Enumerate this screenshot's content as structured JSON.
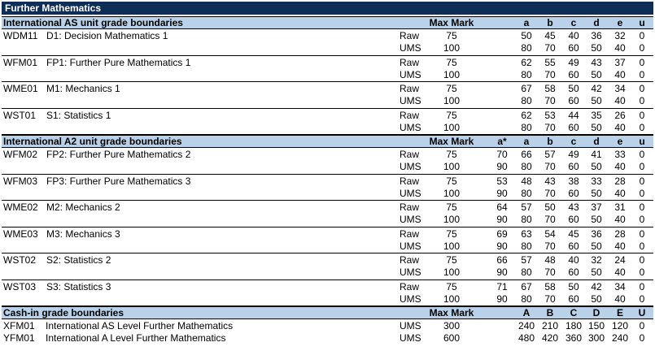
{
  "title": "Further Mathematics",
  "sections": [
    {
      "heading": "International AS unit grade boundaries",
      "columns": [
        "Max Mark",
        "a",
        "b",
        "c",
        "d",
        "e",
        "u"
      ],
      "has_astar": false,
      "units": [
        {
          "code": "WDM11",
          "name": "D1: Decision Mathematics 1",
          "raw": {
            "type": "Raw",
            "max": "75",
            "grades": [
              "50",
              "45",
              "40",
              "36",
              "32",
              "0"
            ]
          },
          "ums": {
            "type": "UMS",
            "max": "100",
            "grades": [
              "80",
              "70",
              "60",
              "50",
              "40",
              "0"
            ]
          }
        },
        {
          "code": "WFM01",
          "name": "FP1: Further Pure Mathematics 1",
          "raw": {
            "type": "Raw",
            "max": "75",
            "grades": [
              "62",
              "55",
              "49",
              "43",
              "37",
              "0"
            ]
          },
          "ums": {
            "type": "UMS",
            "max": "100",
            "grades": [
              "80",
              "70",
              "60",
              "50",
              "40",
              "0"
            ]
          }
        },
        {
          "code": "WME01",
          "name": "M1: Mechanics 1",
          "raw": {
            "type": "Raw",
            "max": "75",
            "grades": [
              "67",
              "58",
              "50",
              "42",
              "34",
              "0"
            ]
          },
          "ums": {
            "type": "UMS",
            "max": "100",
            "grades": [
              "80",
              "70",
              "60",
              "50",
              "40",
              "0"
            ]
          }
        },
        {
          "code": "WST01",
          "name": "S1: Statistics 1",
          "raw": {
            "type": "Raw",
            "max": "75",
            "grades": [
              "62",
              "53",
              "44",
              "35",
              "26",
              "0"
            ]
          },
          "ums": {
            "type": "UMS",
            "max": "100",
            "grades": [
              "80",
              "70",
              "60",
              "50",
              "40",
              "0"
            ]
          }
        }
      ]
    },
    {
      "heading": "International A2 unit grade boundaries",
      "columns": [
        "Max Mark",
        "a*",
        "a",
        "b",
        "c",
        "d",
        "e",
        "u"
      ],
      "has_astar": true,
      "units": [
        {
          "code": "WFM02",
          "name": "FP2: Further Pure Mathematics 2",
          "raw": {
            "type": "Raw",
            "max": "75",
            "grades": [
              "70",
              "66",
              "57",
              "49",
              "41",
              "33",
              "0"
            ]
          },
          "ums": {
            "type": "UMS",
            "max": "100",
            "grades": [
              "90",
              "80",
              "70",
              "60",
              "50",
              "40",
              "0"
            ]
          }
        },
        {
          "code": "WFM03",
          "name": "FP3: Further Pure Mathematics 3",
          "raw": {
            "type": "Raw",
            "max": "75",
            "grades": [
              "53",
              "48",
              "43",
              "38",
              "33",
              "28",
              "0"
            ]
          },
          "ums": {
            "type": "UMS",
            "max": "100",
            "grades": [
              "90",
              "80",
              "70",
              "60",
              "50",
              "40",
              "0"
            ]
          }
        },
        {
          "code": "WME02",
          "name": "M2: Mechanics 2",
          "raw": {
            "type": "Raw",
            "max": "75",
            "grades": [
              "64",
              "57",
              "50",
              "43",
              "37",
              "31",
              "0"
            ]
          },
          "ums": {
            "type": "UMS",
            "max": "100",
            "grades": [
              "90",
              "80",
              "70",
              "60",
              "50",
              "40",
              "0"
            ]
          }
        },
        {
          "code": "WME03",
          "name": "M3: Mechanics 3",
          "raw": {
            "type": "Raw",
            "max": "75",
            "grades": [
              "69",
              "63",
              "54",
              "45",
              "36",
              "28",
              "0"
            ]
          },
          "ums": {
            "type": "UMS",
            "max": "100",
            "grades": [
              "90",
              "80",
              "70",
              "60",
              "50",
              "40",
              "0"
            ]
          }
        },
        {
          "code": "WST02",
          "name": "S2: Statistics 2",
          "raw": {
            "type": "Raw",
            "max": "75",
            "grades": [
              "66",
              "57",
              "48",
              "40",
              "32",
              "24",
              "0"
            ]
          },
          "ums": {
            "type": "UMS",
            "max": "100",
            "grades": [
              "90",
              "80",
              "70",
              "60",
              "50",
              "40",
              "0"
            ]
          }
        },
        {
          "code": "WST03",
          "name": "S3: Statistics 3",
          "raw": {
            "type": "Raw",
            "max": "75",
            "grades": [
              "71",
              "67",
              "58",
              "50",
              "42",
              "34",
              "0"
            ]
          },
          "ums": {
            "type": "UMS",
            "max": "100",
            "grades": [
              "90",
              "80",
              "70",
              "60",
              "50",
              "40",
              "0"
            ]
          }
        }
      ]
    }
  ],
  "cashin": {
    "heading": "Cash-in grade boundaries",
    "columns": [
      "Max Mark",
      "A",
      "B",
      "C",
      "D",
      "E",
      "U"
    ],
    "rows": [
      {
        "code": "XFM01",
        "name": "International AS Level Further Mathematics",
        "type": "UMS",
        "max": "300",
        "grades": [
          "240",
          "210",
          "180",
          "150",
          "120",
          "0"
        ]
      },
      {
        "code": "YFM01",
        "name": "International A Level Further Mathematics",
        "type": "UMS",
        "max": "600",
        "grades": [
          "480",
          "420",
          "360",
          "300",
          "240",
          "0"
        ]
      }
    ]
  }
}
